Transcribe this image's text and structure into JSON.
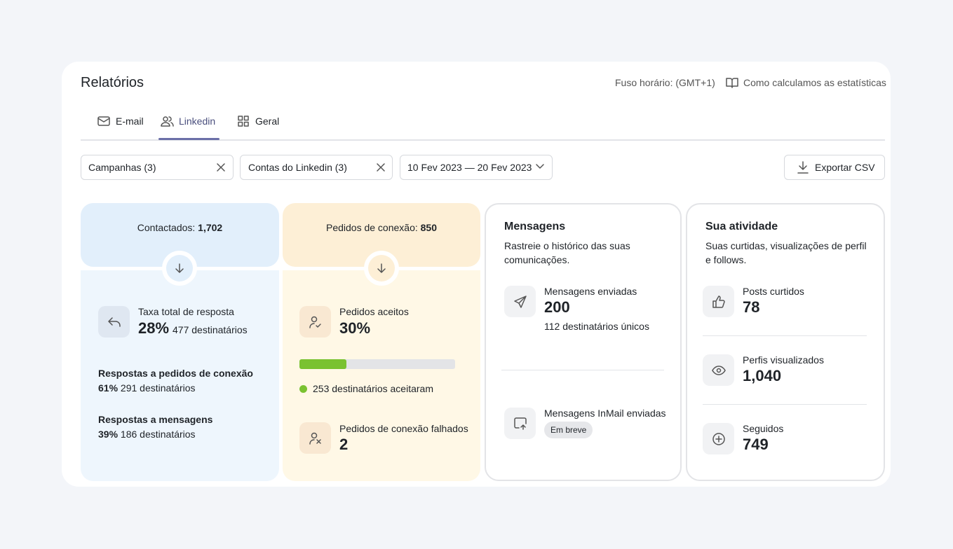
{
  "header": {
    "title": "Relatórios",
    "timezone": "Fuso horário: (GMT+1)",
    "help_link": "Como calculamos as estatísticas"
  },
  "tabs": [
    "E-mail",
    "Linkedin",
    "Geral"
  ],
  "filters": {
    "campaigns": "Campanhas (3)",
    "accounts": "Contas do Linkedin (3)",
    "date_range": "10 Fev 2023 — 20 Fev 2023",
    "export": "Exportar CSV"
  },
  "contacted": {
    "label": "Contactados:",
    "value": "1,702",
    "response_rate_title": "Taxa total de resposta",
    "response_rate": "28%",
    "response_rate_recipients": "477 destinatários",
    "connection_replies_title": "Respostas a pedidos de conexão",
    "connection_replies_rate": "61%",
    "connection_replies_recipients": "291 destinatários",
    "message_replies_title": "Respostas a mensagens",
    "message_replies_rate": "39%",
    "message_replies_recipients": "186 destinatários"
  },
  "connections": {
    "label": "Pedidos de conexão:",
    "value": "850",
    "accepted_title": "Pedidos aceitos",
    "accepted_rate": {
      "value": 30,
      "label": "30%"
    },
    "accepted_recipients": "253 destinatários aceitaram",
    "failed_title": "Pedidos de conexão falhados",
    "failed_value": "2"
  },
  "messages": {
    "title": "Mensagens",
    "description_lines": [
      "Rastreie o histórico das suas",
      "comunicações."
    ],
    "sent_title": "Mensagens enviadas",
    "sent_value": "200",
    "sent_unique": "112 destinatários únicos",
    "inmail_title": "Mensagens InMail enviadas",
    "inmail_badge": "Em breve"
  },
  "activity": {
    "title": "Sua atividade",
    "description_lines": [
      "Suas curtidas, visualizações de perfil",
      "e follows."
    ],
    "items": [
      {
        "label": "Posts curtidos",
        "value": "78"
      },
      {
        "label": "Perfis visualizados",
        "value": "1,040"
      },
      {
        "label": "Seguidos",
        "value": "749"
      }
    ]
  }
}
